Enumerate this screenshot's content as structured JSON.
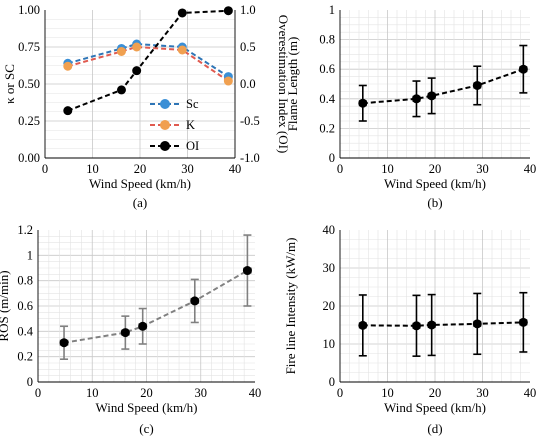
{
  "chart_data": [
    {
      "type": "line",
      "panel_label": "(a)",
      "xlabel": "Wind Speed (km/h)",
      "ylabel": "κ or SC",
      "y2label": "Overestimation Index  (OI)",
      "xlim": [
        0,
        40
      ],
      "ylim": [
        0,
        1
      ],
      "y2lim": [
        -1,
        1
      ],
      "xticks": [
        "0",
        "10",
        "20",
        "30",
        "40"
      ],
      "yticks": [
        "0.00",
        "0.25",
        "0.50",
        "0.75",
        "1.00"
      ],
      "y2ticks": [
        "-1.0",
        "-0.5",
        "0.0",
        "0.5",
        "1.0"
      ],
      "grid": true,
      "legend_position": "lower-right",
      "series": [
        {
          "name": "Sc",
          "axis": "left",
          "color": "#2e75b6",
          "marker_color": "#3b8fd6",
          "dash": "dashed",
          "x": [
            4.8,
            16.1,
            19.3,
            28.9,
            38.6
          ],
          "y": [
            0.64,
            0.74,
            0.77,
            0.75,
            0.55
          ]
        },
        {
          "name": "K",
          "axis": "left",
          "color": "#e05a50",
          "marker_color": "#f0a050",
          "dash": "dashed",
          "x": [
            4.8,
            16.1,
            19.3,
            28.9,
            38.6
          ],
          "y": [
            0.62,
            0.72,
            0.75,
            0.73,
            0.52
          ]
        },
        {
          "name": "OI",
          "axis": "right",
          "color": "#000000",
          "marker_color": "#000000",
          "dash": "dashed",
          "x": [
            4.8,
            16.1,
            19.3,
            28.9,
            38.6
          ],
          "y": [
            -0.36,
            -0.08,
            0.18,
            0.96,
            0.99
          ]
        }
      ]
    },
    {
      "type": "line",
      "panel_label": "(b)",
      "xlabel": "Wind Speed (km/h)",
      "ylabel": "Flame Length (m)",
      "xlim": [
        0,
        40
      ],
      "ylim": [
        0,
        1
      ],
      "xticks": [
        "0",
        "10",
        "20",
        "30",
        "40"
      ],
      "yticks": [
        "0",
        "0.2",
        "0.4",
        "0.6",
        "0.8",
        "1"
      ],
      "grid": true,
      "series": [
        {
          "color": "#000000",
          "error_color": "#000000",
          "x": [
            4.8,
            16.1,
            19.3,
            28.9,
            38.6
          ],
          "y": [
            0.37,
            0.4,
            0.42,
            0.49,
            0.6
          ],
          "y_err": [
            0.12,
            0.12,
            0.12,
            0.13,
            0.16
          ],
          "x_err": [
            0.7,
            0.7,
            0.7,
            0.7,
            0.7
          ]
        }
      ]
    },
    {
      "type": "line",
      "panel_label": "(c)",
      "xlabel": "Wind Speed (km/h)",
      "ylabel": "ROS (m/min)",
      "xlim": [
        0,
        40
      ],
      "ylim": [
        0,
        1.2
      ],
      "xticks": [
        "0",
        "10",
        "20",
        "30",
        "40"
      ],
      "yticks": [
        "0",
        "0.2",
        "0.4",
        "0.6",
        "0.8",
        "1",
        "1.2"
      ],
      "grid": true,
      "series": [
        {
          "color": "#808080",
          "error_color": "#808080",
          "x": [
            4.8,
            16.1,
            19.3,
            28.9,
            38.6
          ],
          "y": [
            0.31,
            0.39,
            0.44,
            0.64,
            0.88
          ],
          "y_err": [
            0.13,
            0.13,
            0.14,
            0.17,
            0.28
          ],
          "x_err": [
            0.7,
            0.7,
            0.7,
            0.7,
            0.7
          ]
        }
      ]
    },
    {
      "type": "line",
      "panel_label": "(d)",
      "xlabel": "Wind Speed (km/h)",
      "ylabel": "Fire line Intensity (kW/m)",
      "xlim": [
        0,
        40
      ],
      "ylim": [
        0,
        40
      ],
      "xticks": [
        "0",
        "10",
        "20",
        "30",
        "40"
      ],
      "yticks": [
        "0",
        "10",
        "20",
        "30",
        "40"
      ],
      "grid": true,
      "series": [
        {
          "color": "#000000",
          "error_color": "#000000",
          "x": [
            4.8,
            16.1,
            19.3,
            28.9,
            38.6
          ],
          "y": [
            14.9,
            14.8,
            15.0,
            15.3,
            15.7
          ],
          "y_err": [
            8.0,
            8.0,
            8.0,
            8.0,
            7.8
          ],
          "x_err": [
            0.7,
            0.7,
            0.7,
            0.7,
            0.7
          ]
        }
      ]
    }
  ]
}
